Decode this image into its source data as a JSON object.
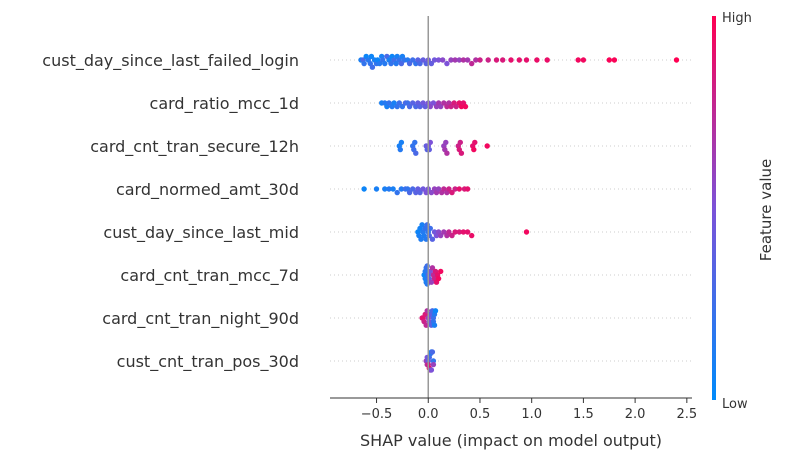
{
  "chart_data": {
    "type": "scatter",
    "xlabel": "SHAP value (impact on model output)",
    "xlim": [
      -0.95,
      2.55
    ],
    "xticks": [
      -0.5,
      0.0,
      0.5,
      1.0,
      1.5,
      2.0,
      2.5
    ],
    "xtick_labels": [
      "−0.5",
      "0.0",
      "0.5",
      "1.0",
      "1.5",
      "2.0",
      "2.5"
    ],
    "colorbar": {
      "label": "Feature value",
      "high": "High",
      "low": "Low",
      "color_low": "#008bfb",
      "color_high": "#ff0052"
    },
    "features": [
      {
        "name": "cust_day_since_last_failed_login",
        "points": [
          [
            -0.65,
            0.1
          ],
          [
            -0.63,
            0.3
          ],
          [
            -0.62,
            0.2
          ],
          [
            -0.6,
            0.05
          ],
          [
            -0.58,
            0.15
          ],
          [
            -0.56,
            0.2
          ],
          [
            -0.55,
            0.05
          ],
          [
            -0.54,
            0.25
          ],
          [
            -0.52,
            0.1
          ],
          [
            -0.5,
            0.2
          ],
          [
            -0.49,
            0.05
          ],
          [
            -0.47,
            0.15
          ],
          [
            -0.45,
            0.1
          ],
          [
            -0.44,
            0.2
          ],
          [
            -0.42,
            0.15
          ],
          [
            -0.4,
            0.3
          ],
          [
            -0.38,
            0.1
          ],
          [
            -0.36,
            0.2
          ],
          [
            -0.35,
            0.05
          ],
          [
            -0.33,
            0.25
          ],
          [
            -0.31,
            0.15
          ],
          [
            -0.3,
            0.1
          ],
          [
            -0.28,
            0.2
          ],
          [
            -0.26,
            0.3
          ],
          [
            -0.25,
            0.1
          ],
          [
            -0.23,
            0.2
          ],
          [
            -0.2,
            0.15
          ],
          [
            -0.18,
            0.3
          ],
          [
            -0.15,
            0.25
          ],
          [
            -0.12,
            0.2
          ],
          [
            -0.1,
            0.35
          ],
          [
            -0.08,
            0.3
          ],
          [
            -0.05,
            0.4
          ],
          [
            -0.02,
            0.35
          ],
          [
            0.0,
            0.45
          ],
          [
            0.03,
            0.4
          ],
          [
            0.06,
            0.45
          ],
          [
            0.1,
            0.5
          ],
          [
            0.14,
            0.55
          ],
          [
            0.18,
            0.5
          ],
          [
            0.22,
            0.6
          ],
          [
            0.26,
            0.65
          ],
          [
            0.3,
            0.6
          ],
          [
            0.34,
            0.7
          ],
          [
            0.38,
            0.65
          ],
          [
            0.42,
            0.75
          ],
          [
            0.46,
            0.7
          ],
          [
            0.5,
            0.8
          ],
          [
            0.58,
            0.8
          ],
          [
            0.66,
            0.85
          ],
          [
            0.72,
            0.85
          ],
          [
            0.8,
            0.9
          ],
          [
            0.88,
            0.9
          ],
          [
            0.95,
            0.9
          ],
          [
            1.05,
            0.92
          ],
          [
            1.15,
            0.92
          ],
          [
            1.45,
            0.95
          ],
          [
            1.5,
            0.95
          ],
          [
            1.75,
            0.98
          ],
          [
            1.8,
            0.98
          ],
          [
            2.4,
            1.0
          ]
        ]
      },
      {
        "name": "card_ratio_mcc_1d",
        "points": [
          [
            -0.45,
            0.1
          ],
          [
            -0.42,
            0.15
          ],
          [
            -0.4,
            0.1
          ],
          [
            -0.38,
            0.2
          ],
          [
            -0.35,
            0.15
          ],
          [
            -0.33,
            0.1
          ],
          [
            -0.3,
            0.2
          ],
          [
            -0.28,
            0.25
          ],
          [
            -0.25,
            0.2
          ],
          [
            -0.22,
            0.3
          ],
          [
            -0.2,
            0.25
          ],
          [
            -0.18,
            0.3
          ],
          [
            -0.15,
            0.35
          ],
          [
            -0.12,
            0.3
          ],
          [
            -0.1,
            0.4
          ],
          [
            -0.08,
            0.35
          ],
          [
            -0.05,
            0.45
          ],
          [
            -0.03,
            0.4
          ],
          [
            0.0,
            0.5
          ],
          [
            0.02,
            0.55
          ],
          [
            0.05,
            0.5
          ],
          [
            0.08,
            0.6
          ],
          [
            0.1,
            0.65
          ],
          [
            0.12,
            0.6
          ],
          [
            0.15,
            0.7
          ],
          [
            0.18,
            0.75
          ],
          [
            0.2,
            0.7
          ],
          [
            0.22,
            0.8
          ],
          [
            0.25,
            0.85
          ],
          [
            0.27,
            0.8
          ],
          [
            0.3,
            0.9
          ],
          [
            0.32,
            0.95
          ],
          [
            0.34,
            0.9
          ],
          [
            0.36,
            0.95
          ]
        ]
      },
      {
        "name": "card_cnt_tran_secure_12h",
        "points": [
          [
            -0.28,
            0.1
          ],
          [
            -0.27,
            0.15
          ],
          [
            -0.26,
            0.1
          ],
          [
            -0.15,
            0.2
          ],
          [
            -0.14,
            0.25
          ],
          [
            -0.13,
            0.2
          ],
          [
            -0.12,
            0.3
          ],
          [
            -0.02,
            0.4
          ],
          [
            -0.01,
            0.35
          ],
          [
            0.0,
            0.45
          ],
          [
            0.01,
            0.4
          ],
          [
            0.02,
            0.5
          ],
          [
            0.15,
            0.6
          ],
          [
            0.16,
            0.65
          ],
          [
            0.17,
            0.6
          ],
          [
            0.18,
            0.7
          ],
          [
            0.29,
            0.8
          ],
          [
            0.3,
            0.85
          ],
          [
            0.31,
            0.8
          ],
          [
            0.32,
            0.85
          ],
          [
            0.43,
            0.9
          ],
          [
            0.44,
            0.95
          ],
          [
            0.45,
            0.9
          ],
          [
            0.57,
            0.95
          ]
        ]
      },
      {
        "name": "card_normed_amt_30d",
        "points": [
          [
            -0.62,
            0.05
          ],
          [
            -0.5,
            0.1
          ],
          [
            -0.42,
            0.1
          ],
          [
            -0.38,
            0.15
          ],
          [
            -0.34,
            0.1
          ],
          [
            -0.3,
            0.2
          ],
          [
            -0.26,
            0.15
          ],
          [
            -0.22,
            0.25
          ],
          [
            -0.2,
            0.2
          ],
          [
            -0.18,
            0.3
          ],
          [
            -0.15,
            0.3
          ],
          [
            -0.12,
            0.35
          ],
          [
            -0.1,
            0.4
          ],
          [
            -0.08,
            0.35
          ],
          [
            -0.05,
            0.45
          ],
          [
            -0.02,
            0.5
          ],
          [
            0.0,
            0.5
          ],
          [
            0.03,
            0.55
          ],
          [
            0.06,
            0.6
          ],
          [
            0.08,
            0.65
          ],
          [
            0.1,
            0.6
          ],
          [
            0.13,
            0.7
          ],
          [
            0.15,
            0.75
          ],
          [
            0.18,
            0.7
          ],
          [
            0.2,
            0.8
          ],
          [
            0.23,
            0.85
          ],
          [
            0.26,
            0.8
          ],
          [
            0.3,
            0.9
          ],
          [
            0.35,
            0.85
          ],
          [
            0.38,
            0.9
          ]
        ]
      },
      {
        "name": "cust_day_since_last_mid",
        "points": [
          [
            -0.1,
            0.05
          ],
          [
            -0.09,
            0.1
          ],
          [
            -0.08,
            0.08
          ],
          [
            -0.07,
            0.12
          ],
          [
            -0.06,
            0.1
          ],
          [
            -0.05,
            0.15
          ],
          [
            -0.04,
            0.12
          ],
          [
            -0.03,
            0.2
          ],
          [
            -0.02,
            0.15
          ],
          [
            -0.01,
            0.25
          ],
          [
            0.0,
            0.2
          ],
          [
            0.01,
            0.3
          ],
          [
            0.02,
            0.25
          ],
          [
            0.04,
            0.35
          ],
          [
            0.06,
            0.45
          ],
          [
            0.08,
            0.5
          ],
          [
            0.1,
            0.55
          ],
          [
            0.12,
            0.6
          ],
          [
            0.15,
            0.65
          ],
          [
            0.18,
            0.7
          ],
          [
            0.2,
            0.75
          ],
          [
            0.23,
            0.8
          ],
          [
            0.26,
            0.85
          ],
          [
            0.3,
            0.85
          ],
          [
            0.34,
            0.9
          ],
          [
            0.38,
            0.9
          ],
          [
            0.42,
            0.92
          ],
          [
            0.95,
            0.95
          ]
        ]
      },
      {
        "name": "card_cnt_tran_mcc_7d",
        "points": [
          [
            -0.04,
            0.05
          ],
          [
            -0.03,
            0.1
          ],
          [
            -0.03,
            0.15
          ],
          [
            -0.02,
            0.1
          ],
          [
            -0.02,
            0.2
          ],
          [
            -0.01,
            0.15
          ],
          [
            -0.01,
            0.25
          ],
          [
            0.0,
            0.3
          ],
          [
            0.01,
            0.4
          ],
          [
            0.02,
            0.5
          ],
          [
            0.03,
            0.6
          ],
          [
            0.04,
            0.7
          ],
          [
            0.05,
            0.75
          ],
          [
            0.06,
            0.8
          ],
          [
            0.07,
            0.85
          ],
          [
            0.08,
            0.9
          ],
          [
            0.09,
            0.9
          ],
          [
            0.1,
            0.95
          ],
          [
            0.12,
            0.95
          ]
        ]
      },
      {
        "name": "card_cnt_tran_night_90d",
        "points": [
          [
            -0.06,
            0.85
          ],
          [
            -0.05,
            0.9
          ],
          [
            -0.04,
            0.8
          ],
          [
            -0.03,
            0.85
          ],
          [
            -0.02,
            0.75
          ],
          [
            -0.01,
            0.7
          ],
          [
            0.0,
            0.6
          ],
          [
            0.01,
            0.5
          ],
          [
            0.02,
            0.4
          ],
          [
            0.03,
            0.35
          ],
          [
            0.04,
            0.3
          ],
          [
            0.05,
            0.25
          ],
          [
            0.05,
            0.2
          ],
          [
            0.06,
            0.15
          ],
          [
            0.06,
            0.1
          ],
          [
            0.07,
            0.05
          ]
        ]
      },
      {
        "name": "cust_cnt_tran_pos_30d",
        "points": [
          [
            -0.02,
            0.6
          ],
          [
            -0.01,
            0.7
          ],
          [
            -0.01,
            0.5
          ],
          [
            0.0,
            0.4
          ],
          [
            0.0,
            0.8
          ],
          [
            0.01,
            0.3
          ],
          [
            0.01,
            0.9
          ],
          [
            0.02,
            0.2
          ],
          [
            0.02,
            0.7
          ],
          [
            0.03,
            0.1
          ],
          [
            0.03,
            0.5
          ],
          [
            0.04,
            0.3
          ],
          [
            0.05,
            0.2
          ],
          [
            0.05,
            0.6
          ]
        ]
      }
    ]
  }
}
